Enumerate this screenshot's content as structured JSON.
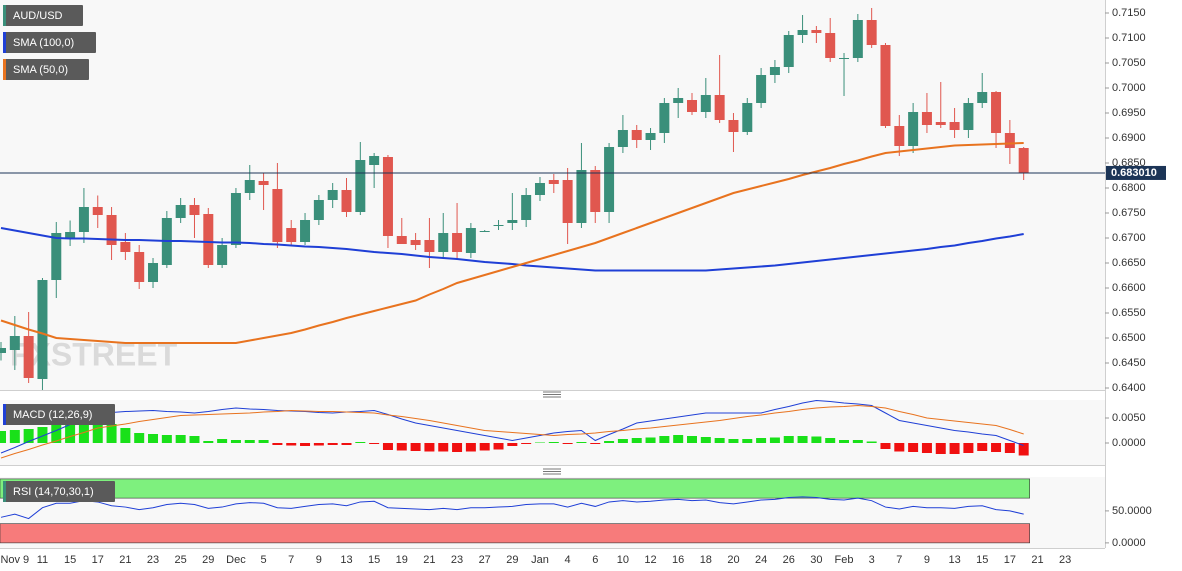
{
  "chart_data": [
    {
      "type": "candlestick",
      "legend": "AUD/USD",
      "legend_color": "#3a8f7a",
      "watermark": "FXSTREET",
      "grid": true,
      "up_color": "#3a8f7a",
      "down_color": "#e0574f",
      "ylim": [
        0.6396,
        0.7176
      ],
      "yticks": [
        {
          "value": 0.64,
          "label": "0.6400"
        },
        {
          "value": 0.645,
          "label": "0.6450"
        },
        {
          "value": 0.65,
          "label": "0.6500"
        },
        {
          "value": 0.655,
          "label": "0.6550"
        },
        {
          "value": 0.66,
          "label": "0.6600"
        },
        {
          "value": 0.665,
          "label": "0.6650"
        },
        {
          "value": 0.67,
          "label": "0.6700"
        },
        {
          "value": 0.675,
          "label": "0.6750"
        },
        {
          "value": 0.68,
          "label": "0.6800"
        },
        {
          "value": 0.685,
          "label": "0.6850"
        },
        {
          "value": 0.69,
          "label": "0.6900"
        },
        {
          "value": 0.695,
          "label": "0.6950"
        },
        {
          "value": 0.7,
          "label": "0.7000"
        },
        {
          "value": 0.705,
          "label": "0.7050"
        },
        {
          "value": 0.71,
          "label": "0.7100"
        },
        {
          "value": 0.715,
          "label": "0.7150"
        }
      ],
      "last_price": {
        "value": 0.68301,
        "label": "0.683010",
        "color": "#1c3557"
      },
      "open": [
        0.647,
        0.6476,
        0.6504,
        0.6418,
        0.6616,
        0.67,
        0.6712,
        0.6762,
        0.6746,
        0.6692,
        0.6672,
        0.6612,
        0.6646,
        0.674,
        0.6766,
        0.6748,
        0.6646,
        0.6686,
        0.679,
        0.6814,
        0.6798,
        0.672,
        0.6692,
        0.6736,
        0.6776,
        0.6796,
        0.6752,
        0.6846,
        0.6862,
        0.6704,
        0.6696,
        0.6696,
        0.6672,
        0.671,
        0.667,
        0.6714,
        0.6724,
        0.673,
        0.6736,
        0.6786,
        0.6816,
        0.6816,
        0.673,
        0.6836,
        0.6752,
        0.6882,
        0.6916,
        0.6896,
        0.691,
        0.697,
        0.6976,
        0.6952,
        0.6986,
        0.6936,
        0.6912,
        0.697,
        0.7026,
        0.7042,
        0.7106,
        0.7116,
        0.711,
        0.7058,
        0.706,
        0.7136,
        0.7086,
        0.6924,
        0.6884,
        0.6952,
        0.6932,
        0.6932,
        0.6916,
        0.697,
        0.6992,
        0.691,
        0.688,
        null,
        null,
        null
      ],
      "high": [
        0.6492,
        0.6544,
        0.6552,
        0.662,
        0.6732,
        0.6735,
        0.68,
        0.6785,
        0.6762,
        0.671,
        0.6686,
        0.666,
        0.6754,
        0.678,
        0.678,
        0.676,
        0.67,
        0.68,
        0.6846,
        0.683,
        0.685,
        0.6736,
        0.675,
        0.6786,
        0.681,
        0.682,
        0.6892,
        0.687,
        0.6866,
        0.674,
        0.671,
        0.674,
        0.675,
        0.677,
        0.673,
        0.6716,
        0.6736,
        0.679,
        0.68,
        0.6822,
        0.6828,
        0.684,
        0.689,
        0.6844,
        0.689,
        0.6946,
        0.6926,
        0.692,
        0.698,
        0.7,
        0.699,
        0.702,
        0.7066,
        0.695,
        0.698,
        0.704,
        0.7056,
        0.7114,
        0.7146,
        0.7124,
        0.714,
        0.707,
        0.7148,
        0.716,
        0.709,
        0.6946,
        0.697,
        0.699,
        0.7012,
        0.696,
        0.698,
        0.703,
        0.6994,
        0.6936,
        0.6882,
        null,
        null,
        null
      ],
      "low": [
        0.6455,
        0.6436,
        0.641,
        0.6396,
        0.658,
        0.6684,
        0.669,
        0.672,
        0.6656,
        0.6656,
        0.6598,
        0.66,
        0.664,
        0.673,
        0.67,
        0.664,
        0.664,
        0.668,
        0.6776,
        0.6756,
        0.668,
        0.6684,
        0.6686,
        0.6726,
        0.676,
        0.6742,
        0.6746,
        0.68,
        0.668,
        0.669,
        0.6676,
        0.664,
        0.666,
        0.6656,
        0.666,
        0.6712,
        0.6716,
        0.6716,
        0.6722,
        0.6774,
        0.679,
        0.6688,
        0.672,
        0.673,
        0.673,
        0.687,
        0.688,
        0.6876,
        0.689,
        0.694,
        0.6946,
        0.694,
        0.693,
        0.6872,
        0.6906,
        0.696,
        0.701,
        0.703,
        0.709,
        0.709,
        0.7052,
        0.6984,
        0.7052,
        0.708,
        0.692,
        0.6864,
        0.687,
        0.691,
        0.692,
        0.69,
        0.69,
        0.696,
        0.688,
        0.6848,
        0.6816,
        null,
        null,
        null
      ],
      "close": [
        0.648,
        0.6504,
        0.642,
        0.6616,
        0.671,
        0.6712,
        0.6762,
        0.6746,
        0.6686,
        0.6672,
        0.6612,
        0.665,
        0.674,
        0.6766,
        0.6746,
        0.6646,
        0.6686,
        0.679,
        0.6816,
        0.6806,
        0.6692,
        0.6692,
        0.6736,
        0.6776,
        0.6796,
        0.6752,
        0.6856,
        0.6864,
        0.6704,
        0.6688,
        0.6686,
        0.6672,
        0.671,
        0.6672,
        0.672,
        0.6714,
        0.6726,
        0.6736,
        0.6786,
        0.681,
        0.6808,
        0.673,
        0.6836,
        0.6752,
        0.6882,
        0.6916,
        0.6896,
        0.691,
        0.697,
        0.698,
        0.6952,
        0.6986,
        0.6936,
        0.6912,
        0.697,
        0.7026,
        0.7042,
        0.7106,
        0.7116,
        0.711,
        0.706,
        0.706,
        0.7136,
        0.7086,
        0.6924,
        0.6884,
        0.6952,
        0.6926,
        0.6926,
        0.6916,
        0.697,
        0.6992,
        0.691,
        0.688,
        0.68301,
        null,
        null,
        null
      ],
      "series": [
        {
          "name": "SMA (100,0)",
          "color": "#1f3fd6",
          "values": [
            0.672,
            0.6715,
            0.671,
            0.6705,
            0.67,
            0.6699,
            0.6699,
            0.6698,
            0.6697,
            0.6696,
            0.6696,
            0.6695,
            0.6694,
            0.6694,
            0.6693,
            0.6692,
            0.6691,
            0.6691,
            0.669,
            0.6688,
            0.6687,
            0.6685,
            0.6683,
            0.6682,
            0.668,
            0.6678,
            0.6675,
            0.6672,
            0.667,
            0.6668,
            0.6665,
            0.6662,
            0.666,
            0.6658,
            0.6655,
            0.6652,
            0.665,
            0.6648,
            0.6645,
            0.6643,
            0.6641,
            0.6639,
            0.6637,
            0.6635,
            0.6635,
            0.6635,
            0.6635,
            0.6635,
            0.6635,
            0.6635,
            0.6635,
            0.6635,
            0.6637,
            0.6639,
            0.6641,
            0.6643,
            0.6645,
            0.6648,
            0.6651,
            0.6654,
            0.6657,
            0.666,
            0.6663,
            0.6666,
            0.6669,
            0.6672,
            0.6675,
            0.6678,
            0.6682,
            0.6685,
            0.669,
            0.6694,
            0.6699,
            0.6703,
            0.6708,
            null,
            null,
            null
          ]
        },
        {
          "name": "SMA (50,0)",
          "color": "#e8731f",
          "values": [
            0.6535,
            0.6526,
            0.6517,
            0.6509,
            0.65,
            0.6498,
            0.6496,
            0.6494,
            0.6492,
            0.649,
            0.649,
            0.649,
            0.649,
            0.649,
            0.649,
            0.649,
            0.649,
            0.649,
            0.6495,
            0.65,
            0.6505,
            0.651,
            0.6517,
            0.6525,
            0.6532,
            0.654,
            0.6547,
            0.6554,
            0.6561,
            0.6568,
            0.6575,
            0.6587,
            0.6598,
            0.661,
            0.6618,
            0.6626,
            0.6634,
            0.6642,
            0.665,
            0.6658,
            0.6666,
            0.6674,
            0.6682,
            0.669,
            0.67,
            0.671,
            0.672,
            0.673,
            0.674,
            0.675,
            0.676,
            0.677,
            0.678,
            0.679,
            0.6797,
            0.6804,
            0.6811,
            0.6818,
            0.6826,
            0.6833,
            0.684,
            0.6848,
            0.6855,
            0.6863,
            0.687,
            0.6873,
            0.6876,
            0.6879,
            0.6882,
            0.6885,
            0.6886,
            0.6887,
            0.6888,
            0.6889,
            0.689,
            null,
            null,
            null
          ]
        }
      ]
    },
    {
      "type": "macd",
      "legend": "MACD (12,26,9)",
      "legend_color": "#1f3fd6",
      "ylim": [
        -0.0044,
        0.0086
      ],
      "yticks": [
        {
          "value": 0.005,
          "label": "0.0050"
        },
        {
          "value": 0,
          "label": "0.0000"
        }
      ],
      "macd_color": "#1f3fd6",
      "signal_color": "#e8731f",
      "positive_color": "#19e019",
      "negative_color": "#f01010",
      "macd": [
        -0.002,
        -0.0009,
        0.0003,
        0.0014,
        0.0025,
        0.0037,
        0.0048,
        0.006,
        0.0061,
        0.0063,
        0.0064,
        0.0065,
        0.0063,
        0.0062,
        0.006,
        0.0063,
        0.0067,
        0.007,
        0.0068,
        0.0067,
        0.0065,
        0.0064,
        0.0063,
        0.0061,
        0.006,
        0.0062,
        0.0063,
        0.0065,
        0.0057,
        0.0048,
        0.004,
        0.0035,
        0.003,
        0.0025,
        0.002,
        0.0015,
        0.001,
        0.0005,
        0.001,
        0.0015,
        0.002,
        0.0023,
        0.0025,
        0.0005,
        0.0017,
        0.0028,
        0.004,
        0.0044,
        0.0048,
        0.0052,
        0.0056,
        0.006,
        0.006,
        0.006,
        0.006,
        0.006,
        0.0067,
        0.0073,
        0.008,
        0.0085,
        0.0083,
        0.008,
        0.0078,
        0.0075,
        0.006,
        0.0045,
        0.004,
        0.0035,
        0.003,
        0.0025,
        0.0022,
        0.0018,
        0.0015,
        0.0005,
        -0.0005,
        null,
        null,
        null
      ],
      "signal": [
        -0.003,
        -0.0021,
        -0.0013,
        -0.0004,
        0.0004,
        0.0013,
        0.0021,
        0.003,
        0.0034,
        0.0038,
        0.0043,
        0.0047,
        0.0051,
        0.0055,
        0.0056,
        0.0057,
        0.0058,
        0.0059,
        0.006,
        0.0062,
        0.0063,
        0.0065,
        0.0064,
        0.0063,
        0.0063,
        0.0062,
        0.0061,
        0.006,
        0.0056,
        0.0053,
        0.0049,
        0.0045,
        0.004,
        0.0035,
        0.003,
        0.0025,
        0.0023,
        0.0021,
        0.0019,
        0.0017,
        0.0015,
        0.0017,
        0.0018,
        0.002,
        0.0023,
        0.0025,
        0.0028,
        0.003,
        0.0033,
        0.0036,
        0.0039,
        0.0042,
        0.0045,
        0.0049,
        0.0053,
        0.0056,
        0.006,
        0.0063,
        0.0067,
        0.007,
        0.0072,
        0.0073,
        0.0075,
        0.0073,
        0.007,
        0.0063,
        0.0057,
        0.005,
        0.0047,
        0.0044,
        0.0041,
        0.0038,
        0.0035,
        0.0027,
        0.0018,
        null,
        null,
        null
      ],
      "histogram": [
        0.0024,
        0.0026,
        0.0028,
        0.0032,
        0.004,
        0.0044,
        0.0046,
        0.0045,
        0.0038,
        0.003,
        0.002,
        0.0018,
        0.0016,
        0.0016,
        0.0014,
        0.0004,
        0.0008,
        0.0006,
        0.0006,
        0.0006,
        -0.0004,
        -0.0005,
        -0.0006,
        -0.0005,
        -0.0004,
        -0.0004,
        0.0002,
        -0.0002,
        -0.0014,
        -0.0015,
        -0.0016,
        -0.0017,
        -0.0017,
        -0.0018,
        -0.0017,
        -0.0015,
        -0.0013,
        -0.0006,
        -0.0002,
        0.0001,
        0.0002,
        -0.0002,
        0.0002,
        -0.0002,
        0.0004,
        0.0008,
        0.001,
        0.0011,
        0.0014,
        0.0016,
        0.0014,
        0.0012,
        0.001,
        0.0008,
        0.0008,
        0.001,
        0.0011,
        0.0014,
        0.0014,
        0.0013,
        0.001,
        0.0006,
        0.0006,
        0.0003,
        -0.0012,
        -0.0017,
        -0.0018,
        -0.002,
        -0.0022,
        -0.0022,
        -0.002,
        -0.0016,
        -0.0018,
        -0.002,
        -0.0025,
        null,
        null,
        null
      ]
    },
    {
      "type": "line",
      "legend": "RSI (14,70,30,1)",
      "legend_color": "#3a8f7a",
      "ylim": [
        -8,
        103
      ],
      "yticks": [
        {
          "value": 50,
          "label": "50.0000"
        },
        {
          "value": 0,
          "label": "0.0000"
        }
      ],
      "color": "#1f3fd6",
      "bands": [
        {
          "from": 70,
          "to": 100,
          "color": "#7ef07e"
        },
        {
          "from": 0,
          "to": 30,
          "color": "#f77b7b"
        }
      ],
      "values": [
        40,
        45,
        38,
        55,
        62,
        62,
        66,
        64,
        58,
        56,
        52,
        55,
        60,
        62,
        60,
        54,
        56,
        61,
        63,
        62,
        55,
        54,
        57,
        60,
        61,
        58,
        64,
        65,
        55,
        54,
        53,
        52,
        54,
        52,
        55,
        55,
        56,
        57,
        60,
        61,
        61,
        56,
        62,
        57,
        64,
        66,
        64,
        65,
        67,
        68,
        66,
        67,
        63,
        61,
        64,
        67,
        68,
        71,
        72,
        71,
        68,
        67,
        70,
        66,
        56,
        53,
        57,
        55,
        55,
        54,
        57,
        58,
        52,
        50,
        45,
        null,
        null,
        null
      ],
      "categories": [
        null,
        "Nov 9",
        null,
        "11",
        null,
        "15",
        null,
        "17",
        null,
        "21",
        null,
        "23",
        null,
        "25",
        null,
        "29",
        null,
        "Dec",
        null,
        "5",
        null,
        "7",
        null,
        "9",
        null,
        "13",
        null,
        "15",
        null,
        "19",
        null,
        "21",
        null,
        "23",
        null,
        "27",
        null,
        "29",
        null,
        "Jan",
        null,
        "4",
        null,
        "6",
        null,
        "10",
        null,
        "12",
        null,
        "16",
        null,
        "18",
        null,
        "20",
        null,
        "24",
        null,
        "26",
        null,
        "30",
        null,
        "Feb",
        null,
        "3",
        null,
        "7",
        null,
        "9",
        null,
        "13",
        null,
        "15",
        null,
        "17",
        null,
        "21",
        null,
        "23"
      ]
    }
  ]
}
